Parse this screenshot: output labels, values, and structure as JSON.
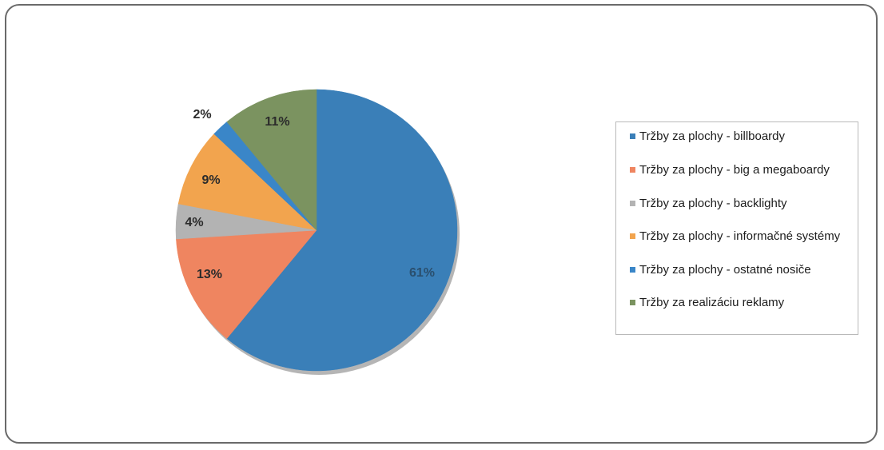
{
  "chart_data": {
    "type": "pie",
    "title": "",
    "slices": [
      {
        "label": "Tržby za plochy - billboardy",
        "value": 61,
        "value_label": "61%",
        "color": "#3a7fb8"
      },
      {
        "label": "Tržby za plochy - big a megaboardy",
        "value": 13,
        "value_label": "13%",
        "color": "#ef8560"
      },
      {
        "label": "Tržby za plochy - backlighty",
        "value": 4,
        "value_label": "4%",
        "color": "#b3b3b3"
      },
      {
        "label": "Tržby za plochy - informačné systémy",
        "value": 9,
        "value_label": "9%",
        "color": "#f2a44e"
      },
      {
        "label": "Tržby za plochy - ostatné nosiče",
        "value": 2,
        "value_label": "2%",
        "color": "#3a86c8"
      },
      {
        "label": "Tržby za realizáciu reklamy",
        "value": 11,
        "value_label": "11%",
        "color": "#7b9360"
      }
    ],
    "legend_position": "right"
  },
  "legend": {
    "items": [
      {
        "label": "Tržby za plochy - billboardy",
        "color": "#3a7fb8"
      },
      {
        "label": "Tržby za plochy - big a megaboardy",
        "color": "#ef8560"
      },
      {
        "label": "Tržby za plochy - backlighty",
        "color": "#b3b3b3"
      },
      {
        "label": "Tržby za plochy - informačné systémy",
        "color": "#f2a44e"
      },
      {
        "label": "Tržby za plochy - ostatné nosiče",
        "color": "#3a86c8"
      },
      {
        "label": "Tržby za realizáciu reklamy",
        "color": "#7b9360"
      }
    ]
  }
}
